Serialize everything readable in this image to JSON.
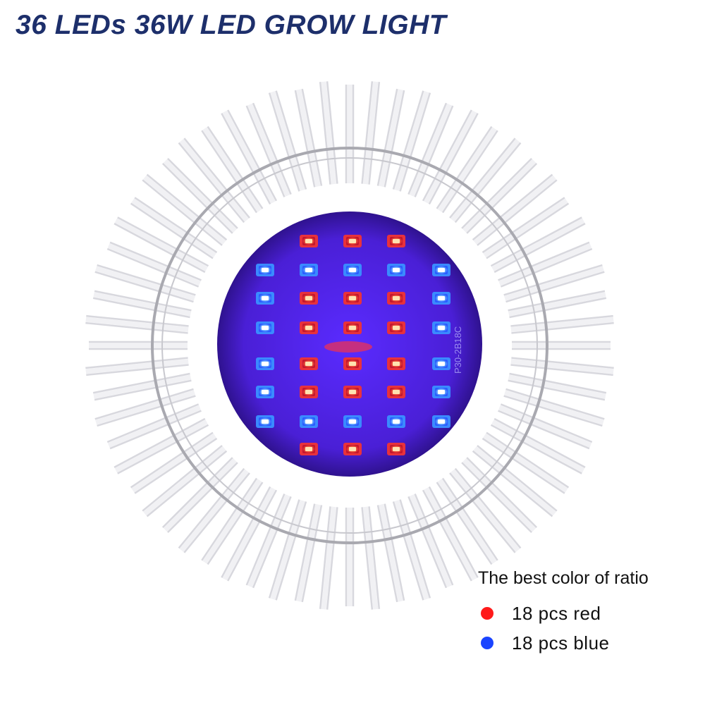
{
  "title": "36 LEDs 36W LED GROW LIGHT",
  "board_text": "P30-2B18C",
  "legend": {
    "title": "The best color of ratio",
    "items": [
      {
        "label": "18 pcs red",
        "color": "#ff1a1a"
      },
      {
        "label": "18 pcs blue",
        "color": "#1a44ff"
      }
    ]
  },
  "led_grid": [
    "_RRR_",
    "BBBBB",
    "BRRRB",
    "BRRRB",
    "BRRRB",
    "BRRRB",
    "BBBBB",
    "_RRR_"
  ],
  "colors": {
    "board": "#4a1fd6",
    "red_led": "#e8323c",
    "blue_led": "#3a8bff",
    "fin": "#e6e6ea",
    "ring": "#a9a9b0",
    "title": "#1d2f6b"
  }
}
